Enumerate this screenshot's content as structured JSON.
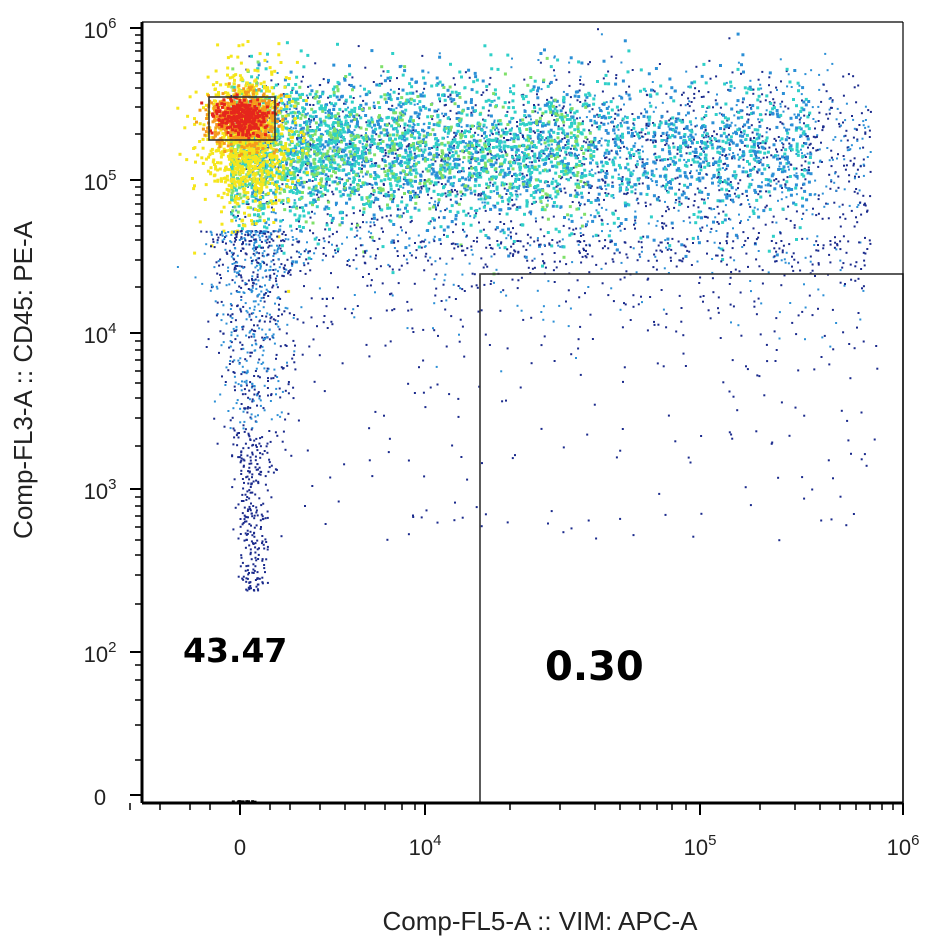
{
  "chart_data": {
    "type": "scatter",
    "subtype": "flow-cytometry density dot plot",
    "xlabel": "Comp-FL5-A :: VIM: APC-A",
    "ylabel": "Comp-FL3-A :: CD45: PE-A",
    "x_scale": "biexponential (linear near 0, log above)",
    "y_scale": "biexponential (linear near 0, log above)",
    "xlim": [
      -1000,
      1000000
    ],
    "ylim": [
      0,
      1000000
    ],
    "x_ticks": [
      {
        "value": 0,
        "base": "0",
        "exp": ""
      },
      {
        "value": 10000,
        "base": "10",
        "exp": "4"
      },
      {
        "value": 100000,
        "base": "10",
        "exp": "5"
      },
      {
        "value": 1000000,
        "base": "10",
        "exp": "6"
      }
    ],
    "y_ticks": [
      {
        "value": 0,
        "base": "0",
        "exp": ""
      },
      {
        "value": 100,
        "base": "10",
        "exp": "2"
      },
      {
        "value": 1000,
        "base": "10",
        "exp": "3"
      },
      {
        "value": 10000,
        "base": "10",
        "exp": "4"
      },
      {
        "value": 100000,
        "base": "10",
        "exp": "5"
      },
      {
        "value": 1000000,
        "base": "10",
        "exp": "6"
      }
    ],
    "color_scale": [
      "#1a2a8c",
      "#2b8fd6",
      "#2fd0c8",
      "#7fe06a",
      "#f5e61c",
      "#f59a1c",
      "#e5261c"
    ],
    "populations": [
      {
        "x": 0,
        "y": 280000,
        "density": "highest"
      },
      {
        "x": 20000,
        "y": 180000,
        "density": "high"
      },
      {
        "x": 150000,
        "y": 200000,
        "density": "medium"
      },
      {
        "x": 0,
        "y": 3000,
        "density": "low"
      }
    ],
    "gates": [
      {
        "type": "rectangle",
        "x_range": [
          -300,
          1000
        ],
        "y_range": [
          180000,
          380000
        ]
      },
      {
        "type": "rectangle",
        "x_range": [
          15000,
          1000000
        ],
        "y_range": [
          0,
          24000
        ]
      }
    ],
    "annotations": [
      "43.47",
      "0.30"
    ]
  }
}
